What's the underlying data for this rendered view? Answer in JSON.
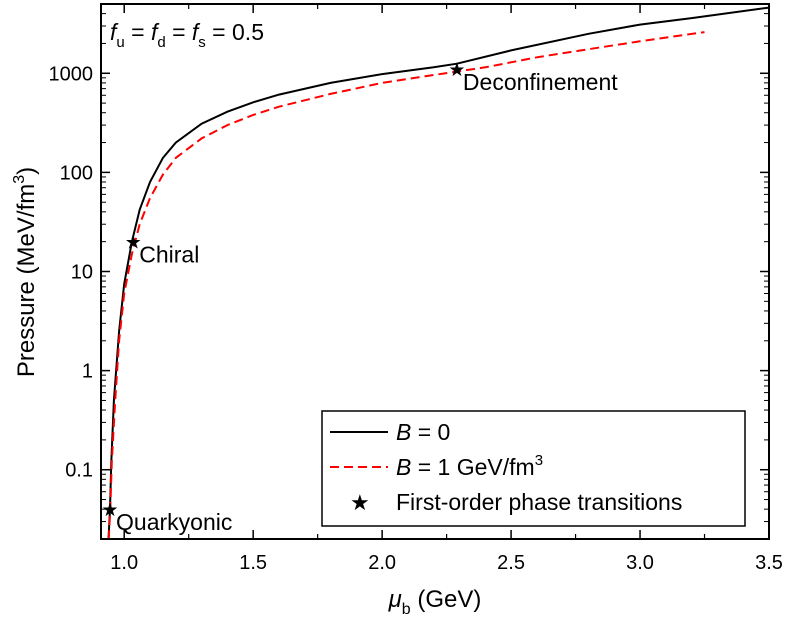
{
  "chart_data": {
    "type": "line",
    "xlabel": {
      "symbol": "μ",
      "sub": "b",
      "rest": " (GeV)"
    },
    "ylabel": {
      "text": "Pressure (MeV/fm",
      "sup": "3",
      "close": ")"
    },
    "xlim": [
      0.91,
      3.5
    ],
    "ylim": [
      0.02,
      5000
    ],
    "yscale": "log",
    "x_ticks": [
      1.0,
      1.5,
      2.0,
      2.5,
      3.0,
      3.5
    ],
    "x_tick_labels": [
      "1.0",
      "1.5",
      "2.0",
      "2.5",
      "3.0",
      "3.5"
    ],
    "y_ticks": [
      0.1,
      1,
      10,
      100,
      1000
    ],
    "y_tick_labels": [
      "0.1",
      "1",
      "10",
      "100",
      "1000"
    ],
    "annotation_top": {
      "parts": [
        "f",
        "u",
        " = ",
        "f",
        "d",
        " = ",
        "f",
        "s",
        " = 0.5"
      ]
    },
    "series": [
      {
        "name": "B = 0",
        "legend_label": {
          "var": "B",
          "rest": " = 0"
        },
        "color": "#000000",
        "style": "solid",
        "x": [
          0.939,
          0.945,
          0.95,
          0.96,
          0.98,
          1.0,
          1.03,
          1.06,
          1.1,
          1.15,
          1.2,
          1.3,
          1.4,
          1.5,
          1.6,
          1.8,
          2.0,
          2.2,
          2.29,
          2.5,
          2.8,
          3.0,
          3.2,
          3.5
        ],
        "y": [
          0.02,
          0.04,
          0.12,
          0.5,
          2.5,
          7.5,
          20,
          42,
          80,
          140,
          200,
          310,
          410,
          510,
          610,
          800,
          980,
          1150,
          1250,
          1700,
          2500,
          3100,
          3600,
          4600
        ]
      },
      {
        "name": "B = 1 GeV/fm3",
        "legend_label": {
          "var": "B",
          "rest": " = 1 GeV/fm",
          "sup": "3"
        },
        "color": "#ff0000",
        "style": "dashed",
        "x": [
          0.94,
          0.946,
          0.952,
          0.965,
          0.98,
          1.0,
          1.03,
          1.06,
          1.1,
          1.15,
          1.2,
          1.3,
          1.4,
          1.5,
          1.6,
          1.8,
          2.0,
          2.2,
          2.4,
          2.6,
          2.8,
          3.0,
          3.25
        ],
        "y": [
          0.02,
          0.04,
          0.12,
          0.5,
          2.0,
          6.0,
          15,
          30,
          55,
          95,
          140,
          220,
          300,
          380,
          460,
          620,
          800,
          960,
          1150,
          1450,
          1750,
          2100,
          2600
        ]
      },
      {
        "name": "First-order phase transitions",
        "legend_label": {
          "rest": "First-order phase transitions"
        },
        "color": "#000000",
        "style": "star",
        "points": [
          {
            "x": 0.945,
            "y": 0.04,
            "label": "Quarkyonic"
          },
          {
            "x": 1.035,
            "y": 20,
            "label": "Chiral"
          },
          {
            "x": 2.29,
            "y": 1100,
            "label": "Deconfinement"
          }
        ]
      }
    ],
    "legend_position": "bottom-right",
    "grid": false
  }
}
